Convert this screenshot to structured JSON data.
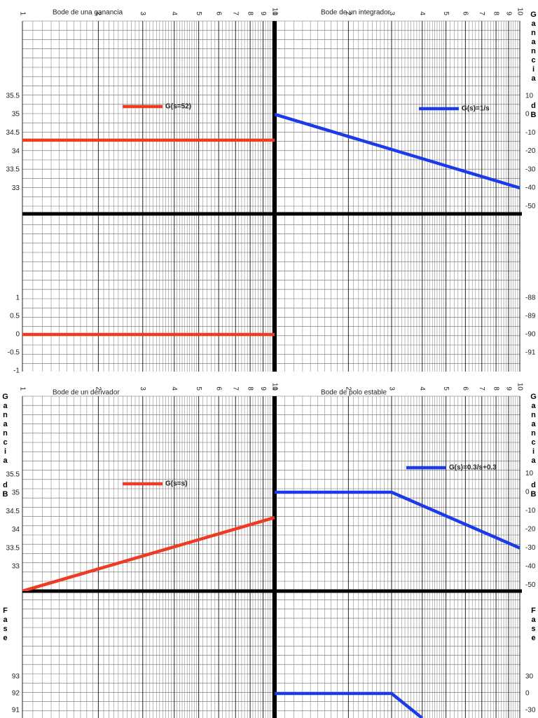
{
  "sheets": [
    {
      "panels": [
        {
          "title": "Bode de una ganancia",
          "legend": "G(s=52)",
          "color": "#ee3b24",
          "gain": [
            [
              1,
              34.3
            ],
            [
              10,
              34.3
            ]
          ],
          "phase": [
            [
              1,
              0
            ],
            [
              10,
              0
            ]
          ]
        },
        {
          "title": "Bode de un integrador",
          "legend": "G(s)=1/s",
          "color": "#1b3be8",
          "gain": [
            [
              1,
              0
            ],
            [
              10,
              -40
            ]
          ],
          "phase": []
        }
      ],
      "gain_left": {
        "ylim": [
          32.3,
          37.53
        ],
        "ticks": [
          35.5,
          35,
          34.5,
          34,
          33.5,
          33
        ]
      },
      "gain_right": {
        "ylim": [
          -54.1,
          50.7
        ],
        "ticks": [
          10,
          0,
          -10,
          -20,
          -30,
          -40,
          -50
        ]
      },
      "phase_left": {
        "ylim": [
          -1.02,
          3.31
        ],
        "ticks": [
          1,
          0.5,
          0,
          -0.5,
          -1
        ]
      },
      "phase_right": {
        "ylim": [
          -92.04,
          -83.4
        ],
        "ticks": [
          -88,
          -89,
          -90,
          -91
        ]
      },
      "right_label": [
        "Ganancia",
        "dB"
      ]
    },
    {
      "panels": [
        {
          "title": "Bode de un derivador",
          "legend": "G(s=s)",
          "color": "#ee3b24",
          "gain": [
            [
              1,
              32.33
            ],
            [
              10,
              34.33
            ]
          ],
          "phase": []
        },
        {
          "title": "Bode de polo estable",
          "legend": "G(s)=0.3/s+0.3",
          "color": "#1b3be8",
          "gain": [
            [
              1,
              0
            ],
            [
              3,
              0
            ],
            [
              10,
              -30
            ]
          ],
          "phase": [
            [
              1,
              0
            ],
            [
              3,
              0
            ],
            [
              4,
              -44
            ]
          ]
        }
      ],
      "gain_left": {
        "ylim": [
          32.33,
          37.63
        ],
        "ticks": [
          35.5,
          35,
          34.5,
          34,
          33.5,
          33
        ]
      },
      "gain_right": {
        "ylim": [
          -53.2,
          51.7
        ],
        "ticks": [
          10,
          0,
          -10,
          -20,
          -30,
          -40,
          -50
        ]
      },
      "phase_left": {
        "ylim": [
          90.54,
          98.08
        ],
        "ticks": [
          93,
          92,
          91
        ]
      },
      "phase_right": {
        "ylim": [
          -43.75,
          182.5
        ],
        "ticks": [
          30,
          0,
          -30
        ]
      },
      "left_label": [
        "Ganancia",
        "dB",
        "Fase"
      ],
      "right_label": [
        "Ganancia",
        "dB",
        "Fase"
      ]
    }
  ],
  "freq_labels": [
    1,
    2,
    3,
    4,
    5,
    6,
    7,
    8,
    9,
    10
  ]
}
